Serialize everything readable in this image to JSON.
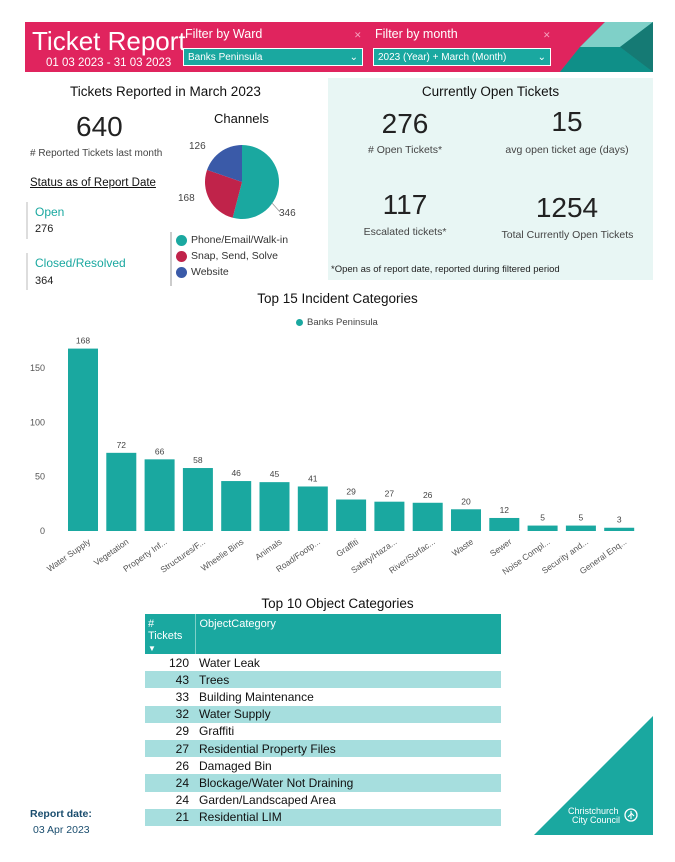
{
  "header": {
    "title": "Ticket Report",
    "date_range": "01 03 2023 - 31 03 2023",
    "ward_filter": {
      "label": "Filter by Ward",
      "value": "Banks Peninsula"
    },
    "month_filter": {
      "label": "Filter by month",
      "value": "2023 (Year) + March (Month)"
    },
    "colors": {
      "header_bg": "#e0245e",
      "accent": "#1aa8a0"
    }
  },
  "reported": {
    "title": "Tickets Reported in March 2023",
    "total": "640",
    "total_label": "# Reported Tickets last month",
    "status_title": "Status as of Report Date",
    "open_label": "Open",
    "open_value": "276",
    "closed_label": "Closed/Resolved",
    "closed_value": "364"
  },
  "channels": {
    "title": "Channels",
    "slices": [
      {
        "name": "Phone/Email/Walk-in",
        "value": 346,
        "color": "#1aa8a0"
      },
      {
        "name": "Snap, Send, Solve",
        "value": 168,
        "color": "#c0234a"
      },
      {
        "name": "Website",
        "value": 126,
        "color": "#3a5aa8"
      }
    ],
    "labels": {
      "phone": "346",
      "snap": "168",
      "website": "126"
    },
    "legend": {
      "phone": "Phone/Email/Walk-in",
      "snap": "Snap, Send, Solve",
      "website": "Website"
    }
  },
  "open_tickets": {
    "title": "Currently Open Tickets",
    "open_count": "276",
    "open_count_label": "# Open Tickets*",
    "avg_age": "15",
    "avg_age_label": "avg open ticket age (days)",
    "escalated": "117",
    "escalated_label": "Escalated tickets*",
    "total_open": "1254",
    "total_open_label": "Total Currently Open Tickets",
    "footnote": "*Open as of report date, reported during filtered period"
  },
  "chart_data": {
    "type": "bar",
    "title": "Top 15 Incident Categories",
    "series": [
      {
        "name": "Banks Peninsula",
        "values": [
          168,
          72,
          66,
          58,
          46,
          45,
          41,
          29,
          27,
          26,
          20,
          12,
          5,
          5,
          3
        ]
      }
    ],
    "categories": [
      "Water Supply",
      "Vegetation",
      "Property Inf...",
      "Structures/F...",
      "Wheelie Bins",
      "Animals",
      "Road/Footp...",
      "Graffiti",
      "Safety/Haza...",
      "River/Surfac...",
      "Waste",
      "Sewer",
      "Noise Compl...",
      "Security and...",
      "General Enq..."
    ],
    "y_ticks": [
      "0",
      "50",
      "100",
      "150"
    ],
    "ylim": [
      0,
      175
    ],
    "grid": false,
    "legend_position": "top-center",
    "color": "#1aa8a0"
  },
  "object_table": {
    "title": "Top 10 Object Categories",
    "col_tickets": "# Tickets",
    "col_category": "ObjectCategory",
    "rows": [
      {
        "count": "120",
        "category": "Water Leak"
      },
      {
        "count": "43",
        "category": "Trees"
      },
      {
        "count": "33",
        "category": "Building Maintenance"
      },
      {
        "count": "32",
        "category": "Water Supply"
      },
      {
        "count": "29",
        "category": "Graffiti"
      },
      {
        "count": "27",
        "category": "Residential Property Files"
      },
      {
        "count": "26",
        "category": "Damaged Bin"
      },
      {
        "count": "24",
        "category": "Blockage/Water Not Draining"
      },
      {
        "count": "24",
        "category": "Garden/Landscaped Area"
      },
      {
        "count": "21",
        "category": "Residential LIM"
      }
    ]
  },
  "footer": {
    "report_date_label": "Report date:",
    "report_date": "03 Apr 2023",
    "council_line1": "Christchurch",
    "council_line2": "City Council"
  }
}
